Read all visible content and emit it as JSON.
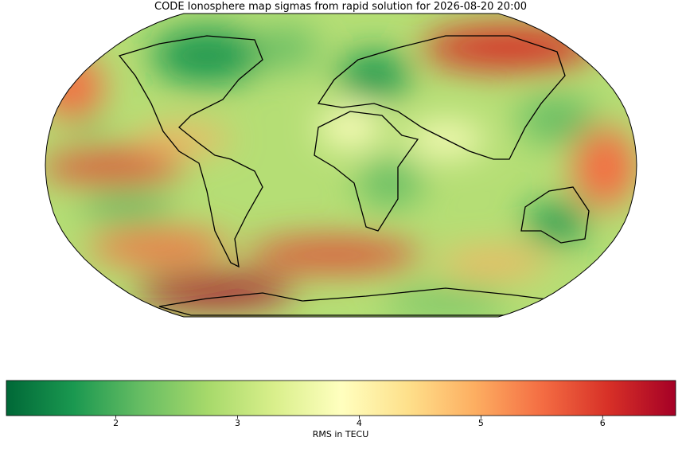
{
  "chart_data": {
    "type": "colormap-map",
    "title": "CODE Ionosphere map sigmas from rapid solution for 2026-08-20 20:00",
    "colorbar": {
      "label": "RMS in TECU",
      "lim": [
        1.1,
        6.6
      ],
      "ticks": [
        2,
        3,
        4,
        5,
        6
      ],
      "colors": [
        "#006837",
        "#1a9850",
        "#66bd63",
        "#a6d96a",
        "#d9ef8b",
        "#ffffbf",
        "#fee08b",
        "#fdae61",
        "#f46d43",
        "#d73027",
        "#a50026"
      ]
    }
  }
}
